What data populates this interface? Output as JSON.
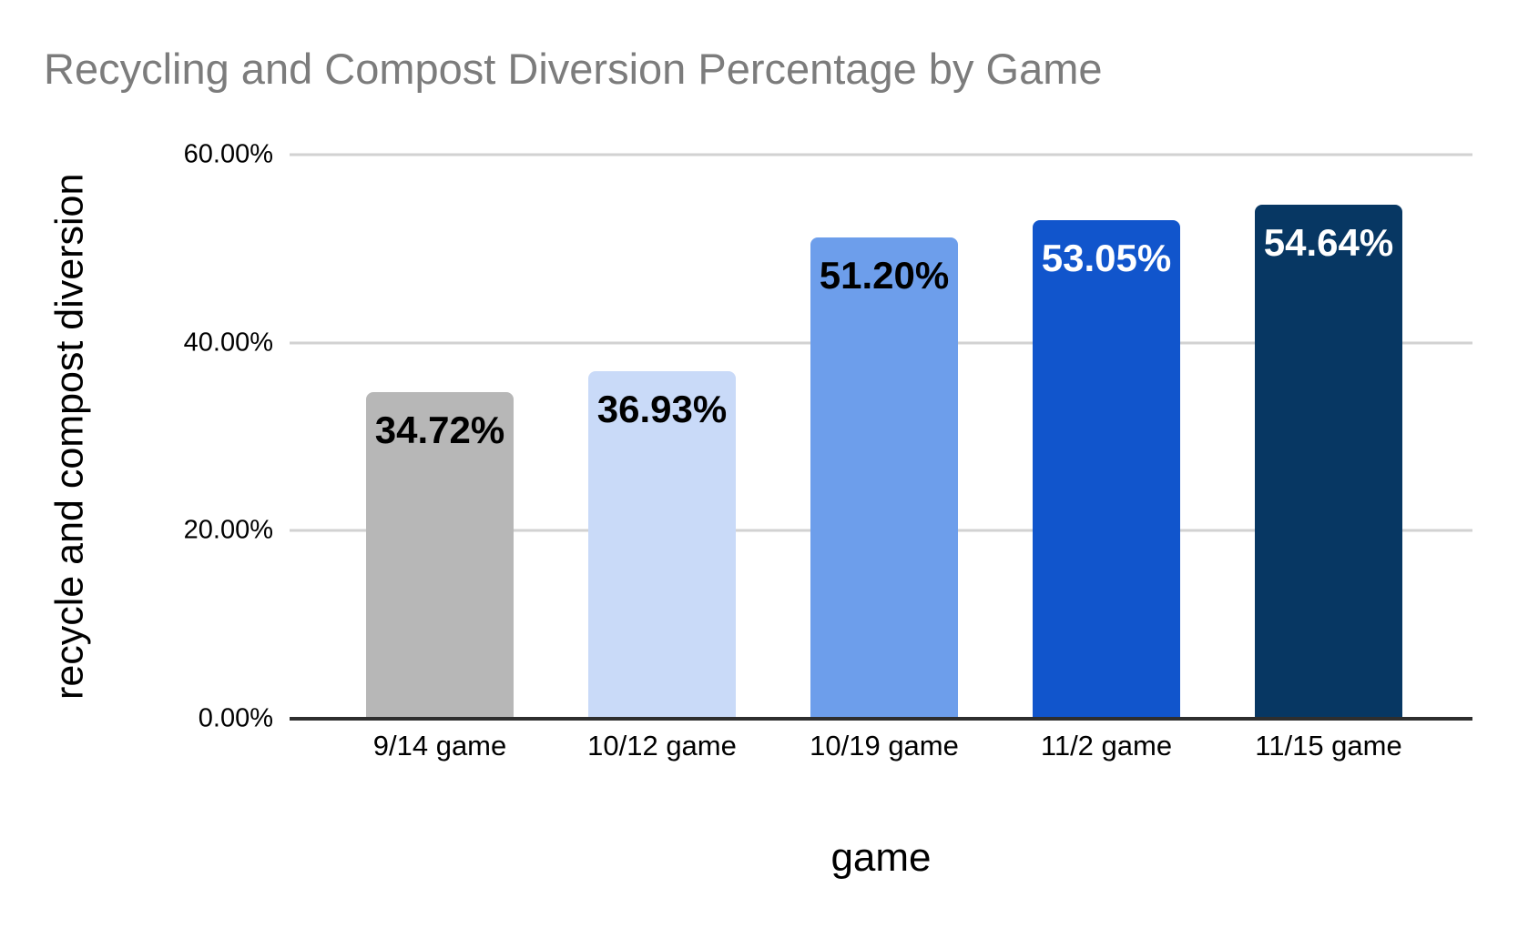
{
  "chart_data": {
    "type": "bar",
    "title": "Recycling and Compost Diversion Percentage by Game",
    "xlabel": "game",
    "ylabel": "recycle and compost diversion",
    "categories": [
      "9/14 game",
      "10/12 game",
      "10/19 game",
      "11/2 game",
      "11/15 game"
    ],
    "values": [
      34.72,
      36.93,
      51.2,
      53.05,
      54.64
    ],
    "data_labels": [
      "34.72%",
      "36.93%",
      "51.20%",
      "53.05%",
      "54.64%"
    ],
    "bar_colors": [
      "#b7b7b7",
      "#c9daf8",
      "#6d9eeb",
      "#1155cc",
      "#073763"
    ],
    "data_label_colors": [
      "#000000",
      "#000000",
      "#000000",
      "#ffffff",
      "#ffffff"
    ],
    "ylim": [
      0,
      60
    ],
    "yticks": [
      {
        "label": "0.00%",
        "value": 0
      },
      {
        "label": "20.00%",
        "value": 20
      },
      {
        "label": "40.00%",
        "value": 40
      },
      {
        "label": "60.00%",
        "value": 60
      }
    ],
    "grid": true,
    "legend": "none"
  },
  "style_colors": {
    "title_color": "#7c7c7c",
    "gridline_color": "#d2d2d2",
    "axis_line_color": "#2e2e2e",
    "background": "#ffffff"
  }
}
